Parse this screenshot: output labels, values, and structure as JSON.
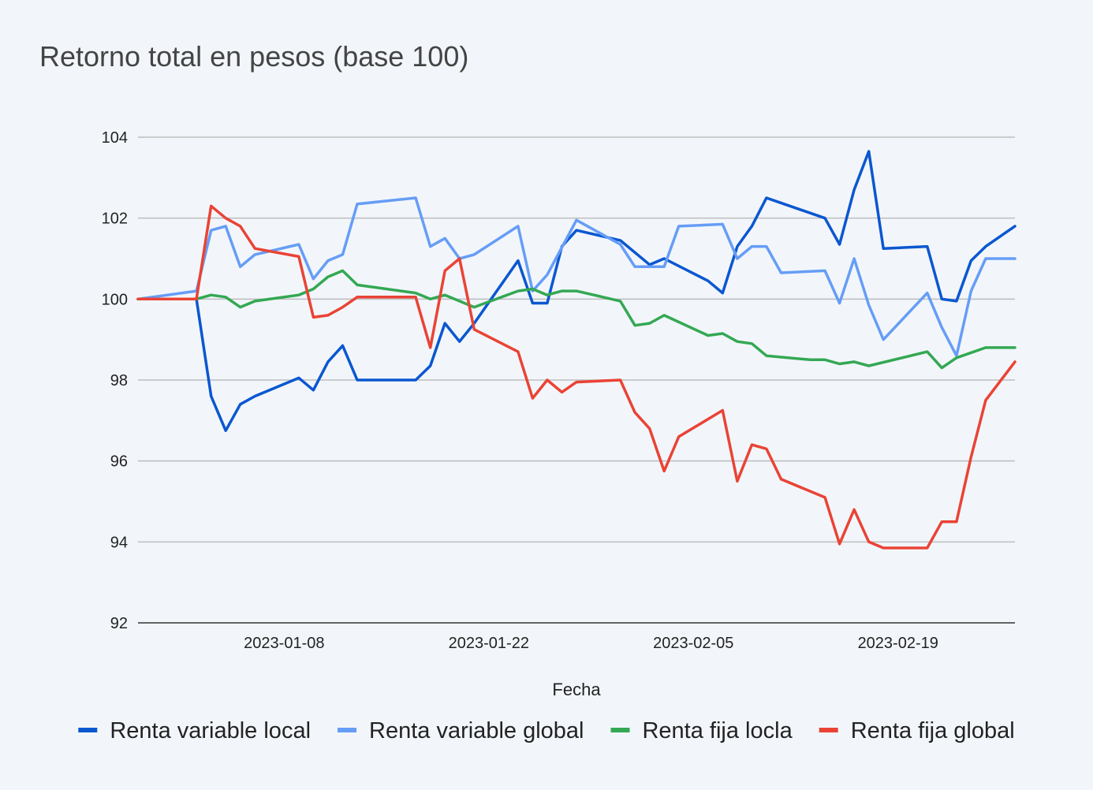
{
  "chart_data": {
    "type": "line",
    "title": "Retorno total en pesos (base 100)",
    "xlabel": "Fecha",
    "ylabel": "",
    "ylim": [
      92,
      104
    ],
    "yticks": [
      92,
      94,
      96,
      98,
      100,
      102,
      104
    ],
    "xticks": [
      "2023-01-08",
      "2023-01-22",
      "2023-02-05",
      "2023-02-19"
    ],
    "xlim": [
      "2022-12-29",
      "2023-02-27"
    ],
    "grid": true,
    "legend_position": "bottom",
    "series": [
      {
        "name": "Renta variable local",
        "color": "#0b57d0",
        "points": [
          [
            "2022-12-29",
            100.0
          ],
          [
            "2023-01-02",
            100.0
          ],
          [
            "2023-01-03",
            97.6
          ],
          [
            "2023-01-04",
            96.75
          ],
          [
            "2023-01-05",
            97.4
          ],
          [
            "2023-01-06",
            97.6
          ],
          [
            "2023-01-09",
            98.05
          ],
          [
            "2023-01-10",
            97.75
          ],
          [
            "2023-01-11",
            98.45
          ],
          [
            "2023-01-12",
            98.85
          ],
          [
            "2023-01-13",
            98.0
          ],
          [
            "2023-01-16",
            98.0
          ],
          [
            "2023-01-17",
            98.0
          ],
          [
            "2023-01-18",
            98.35
          ],
          [
            "2023-01-19",
            99.4
          ],
          [
            "2023-01-20",
            98.95
          ],
          [
            "2023-01-21",
            99.4
          ],
          [
            "2023-01-24",
            100.95
          ],
          [
            "2023-01-25",
            99.9
          ],
          [
            "2023-01-26",
            99.9
          ],
          [
            "2023-01-27",
            101.3
          ],
          [
            "2023-01-28",
            101.7
          ],
          [
            "2023-01-31",
            101.45
          ],
          [
            "2023-02-02",
            100.85
          ],
          [
            "2023-02-03",
            101.0
          ],
          [
            "2023-02-06",
            100.45
          ],
          [
            "2023-02-07",
            100.15
          ],
          [
            "2023-02-08",
            101.3
          ],
          [
            "2023-02-09",
            101.8
          ],
          [
            "2023-02-10",
            102.5
          ],
          [
            "2023-02-14",
            102.0
          ],
          [
            "2023-02-15",
            101.35
          ],
          [
            "2023-02-16",
            102.7
          ],
          [
            "2023-02-17",
            103.65
          ],
          [
            "2023-02-18",
            101.25
          ],
          [
            "2023-02-21",
            101.3
          ],
          [
            "2023-02-22",
            100.0
          ],
          [
            "2023-02-23",
            99.95
          ],
          [
            "2023-02-24",
            100.95
          ],
          [
            "2023-02-25",
            101.3
          ],
          [
            "2023-02-27",
            101.8
          ]
        ]
      },
      {
        "name": "Renta variable global",
        "color": "#669df6",
        "points": [
          [
            "2022-12-29",
            100.0
          ],
          [
            "2023-01-02",
            100.2
          ],
          [
            "2023-01-03",
            101.7
          ],
          [
            "2023-01-04",
            101.8
          ],
          [
            "2023-01-05",
            100.8
          ],
          [
            "2023-01-06",
            101.1
          ],
          [
            "2023-01-09",
            101.35
          ],
          [
            "2023-01-10",
            100.5
          ],
          [
            "2023-01-11",
            100.95
          ],
          [
            "2023-01-12",
            101.1
          ],
          [
            "2023-01-13",
            102.35
          ],
          [
            "2023-01-17",
            102.5
          ],
          [
            "2023-01-18",
            101.3
          ],
          [
            "2023-01-19",
            101.5
          ],
          [
            "2023-01-20",
            101.0
          ],
          [
            "2023-01-21",
            101.1
          ],
          [
            "2023-01-24",
            101.8
          ],
          [
            "2023-01-25",
            100.2
          ],
          [
            "2023-01-26",
            100.6
          ],
          [
            "2023-01-28",
            101.95
          ],
          [
            "2023-01-31",
            101.35
          ],
          [
            "2023-02-01",
            100.8
          ],
          [
            "2023-02-03",
            100.8
          ],
          [
            "2023-02-04",
            101.8
          ],
          [
            "2023-02-07",
            101.85
          ],
          [
            "2023-02-08",
            101.0
          ],
          [
            "2023-02-09",
            101.3
          ],
          [
            "2023-02-10",
            101.3
          ],
          [
            "2023-02-11",
            100.65
          ],
          [
            "2023-02-14",
            100.7
          ],
          [
            "2023-02-15",
            99.9
          ],
          [
            "2023-02-16",
            101.0
          ],
          [
            "2023-02-17",
            99.85
          ],
          [
            "2023-02-18",
            99.0
          ],
          [
            "2023-02-21",
            100.15
          ],
          [
            "2023-02-22",
            99.3
          ],
          [
            "2023-02-23",
            98.6
          ],
          [
            "2023-02-24",
            100.2
          ],
          [
            "2023-02-25",
            101.0
          ],
          [
            "2023-02-27",
            101.0
          ]
        ]
      },
      {
        "name": "Renta fija locla",
        "color": "#34a853",
        "points": [
          [
            "2022-12-29",
            100.0
          ],
          [
            "2023-01-02",
            100.0
          ],
          [
            "2023-01-03",
            100.1
          ],
          [
            "2023-01-04",
            100.05
          ],
          [
            "2023-01-05",
            99.8
          ],
          [
            "2023-01-06",
            99.95
          ],
          [
            "2023-01-09",
            100.1
          ],
          [
            "2023-01-10",
            100.25
          ],
          [
            "2023-01-11",
            100.55
          ],
          [
            "2023-01-12",
            100.7
          ],
          [
            "2023-01-13",
            100.35
          ],
          [
            "2023-01-17",
            100.15
          ],
          [
            "2023-01-18",
            100.0
          ],
          [
            "2023-01-19",
            100.1
          ],
          [
            "2023-01-21",
            99.8
          ],
          [
            "2023-01-24",
            100.2
          ],
          [
            "2023-01-25",
            100.25
          ],
          [
            "2023-01-26",
            100.1
          ],
          [
            "2023-01-27",
            100.2
          ],
          [
            "2023-01-28",
            100.2
          ],
          [
            "2023-01-31",
            99.95
          ],
          [
            "2023-02-01",
            99.35
          ],
          [
            "2023-02-02",
            99.4
          ],
          [
            "2023-02-03",
            99.6
          ],
          [
            "2023-02-06",
            99.1
          ],
          [
            "2023-02-07",
            99.15
          ],
          [
            "2023-02-08",
            98.95
          ],
          [
            "2023-02-09",
            98.9
          ],
          [
            "2023-02-10",
            98.6
          ],
          [
            "2023-02-13",
            98.5
          ],
          [
            "2023-02-14",
            98.5
          ],
          [
            "2023-02-15",
            98.4
          ],
          [
            "2023-02-16",
            98.45
          ],
          [
            "2023-02-17",
            98.35
          ],
          [
            "2023-02-21",
            98.7
          ],
          [
            "2023-02-22",
            98.3
          ],
          [
            "2023-02-23",
            98.55
          ],
          [
            "2023-02-25",
            98.8
          ],
          [
            "2023-02-27",
            98.8
          ]
        ]
      },
      {
        "name": "Renta fija global",
        "color": "#ea4335",
        "points": [
          [
            "2022-12-29",
            100.0
          ],
          [
            "2023-01-02",
            100.0
          ],
          [
            "2023-01-03",
            102.3
          ],
          [
            "2023-01-04",
            102.0
          ],
          [
            "2023-01-05",
            101.8
          ],
          [
            "2023-01-06",
            101.25
          ],
          [
            "2023-01-09",
            101.05
          ],
          [
            "2023-01-10",
            99.55
          ],
          [
            "2023-01-11",
            99.6
          ],
          [
            "2023-01-12",
            99.8
          ],
          [
            "2023-01-13",
            100.05
          ],
          [
            "2023-01-17",
            100.05
          ],
          [
            "2023-01-18",
            98.8
          ],
          [
            "2023-01-19",
            100.7
          ],
          [
            "2023-01-20",
            101.0
          ],
          [
            "2023-01-21",
            99.25
          ],
          [
            "2023-01-24",
            98.7
          ],
          [
            "2023-01-25",
            97.55
          ],
          [
            "2023-01-26",
            98.0
          ],
          [
            "2023-01-27",
            97.7
          ],
          [
            "2023-01-28",
            97.95
          ],
          [
            "2023-01-31",
            98.0
          ],
          [
            "2023-02-01",
            97.2
          ],
          [
            "2023-02-02",
            96.8
          ],
          [
            "2023-02-03",
            95.75
          ],
          [
            "2023-02-04",
            96.6
          ],
          [
            "2023-02-07",
            97.25
          ],
          [
            "2023-02-08",
            95.5
          ],
          [
            "2023-02-09",
            96.4
          ],
          [
            "2023-02-10",
            96.3
          ],
          [
            "2023-02-11",
            95.55
          ],
          [
            "2023-02-14",
            95.1
          ],
          [
            "2023-02-15",
            93.95
          ],
          [
            "2023-02-16",
            94.8
          ],
          [
            "2023-02-17",
            94.0
          ],
          [
            "2023-02-18",
            93.85
          ],
          [
            "2023-02-21",
            93.85
          ],
          [
            "2023-02-22",
            94.5
          ],
          [
            "2023-02-23",
            94.5
          ],
          [
            "2023-02-24",
            96.1
          ],
          [
            "2023-02-25",
            97.5
          ],
          [
            "2023-02-27",
            98.45
          ]
        ]
      }
    ]
  }
}
